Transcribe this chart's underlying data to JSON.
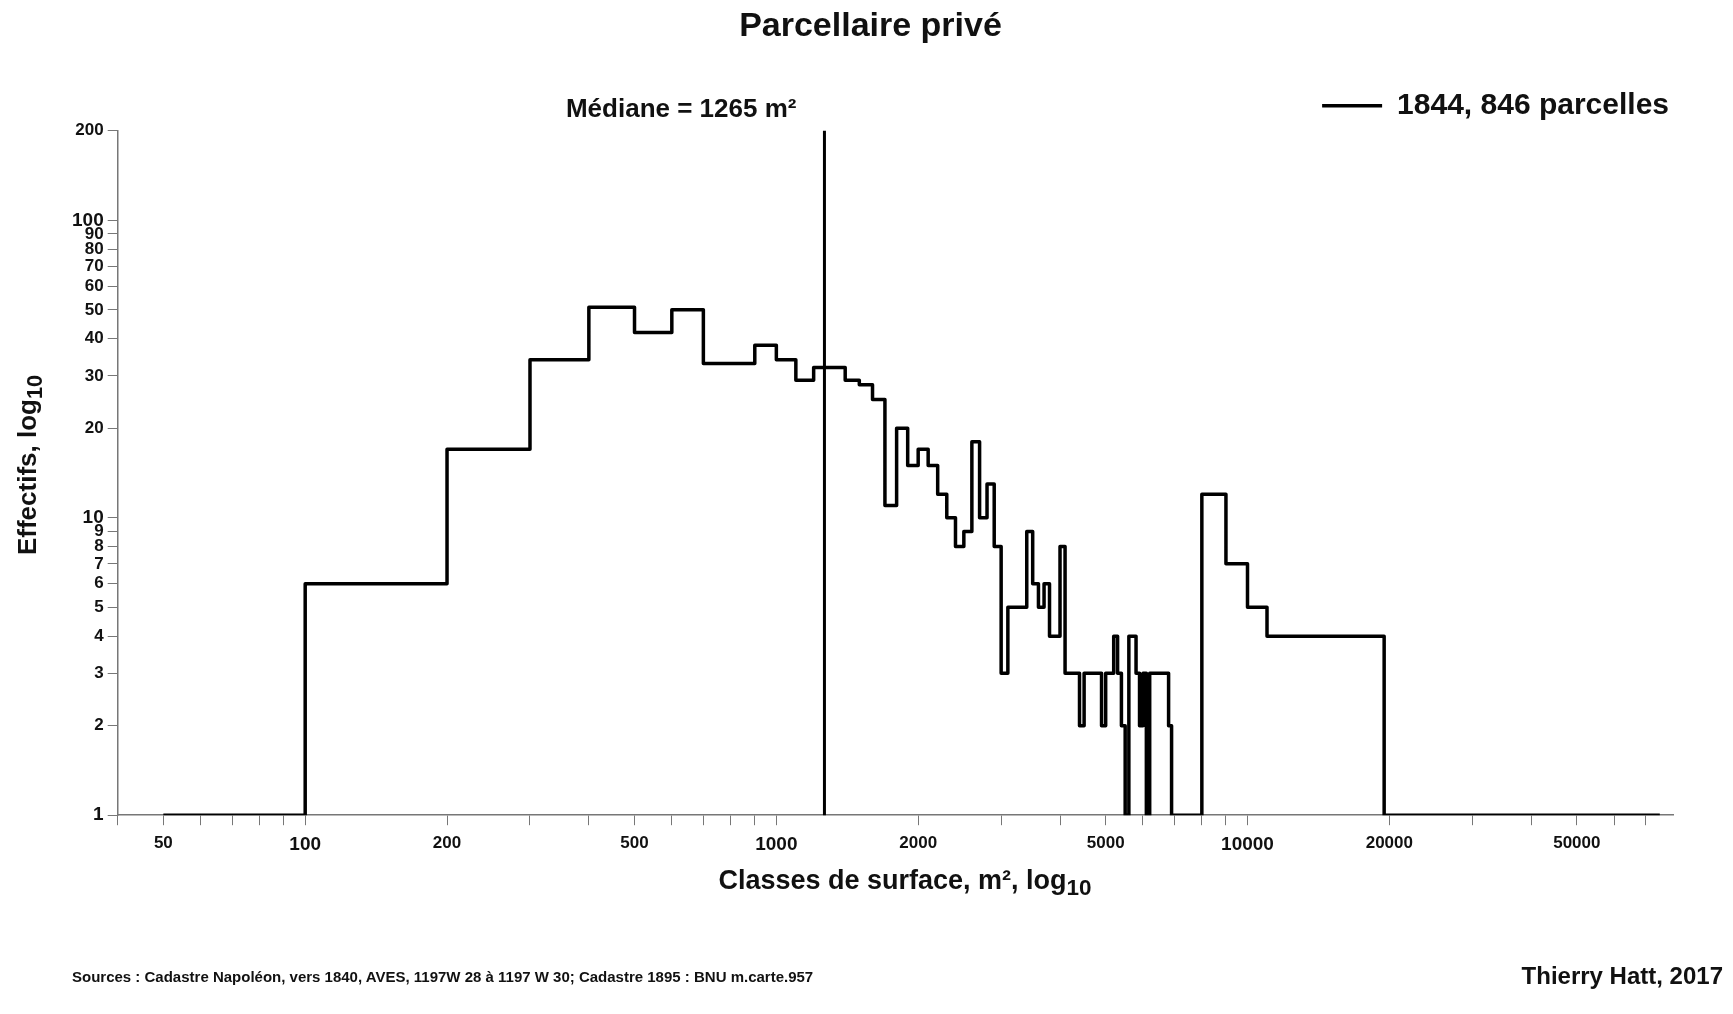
{
  "chart_data": {
    "type": "step",
    "title": "Parcellaire privé",
    "xlabel": "Classes de surface, m², log$_{10}$",
    "ylabel": "Effectifs, log$_{10}$",
    "log": "xy",
    "grid": false,
    "legend": "top right",
    "marker": "none",
    "line_style": "solid",
    "xlim": [
      40,
      80000
    ],
    "xticks": [
      {
        "value": 40,
        "label": null
      },
      50,
      {
        "value": 60,
        "label": null
      },
      {
        "value": 70,
        "label": null
      },
      {
        "value": 80,
        "label": null
      },
      {
        "value": 90,
        "label": null
      },
      100,
      200,
      {
        "value": 300,
        "label": null
      },
      {
        "value": 400,
        "label": null
      },
      500,
      {
        "value": 600,
        "label": null
      },
      {
        "value": 700,
        "label": null
      },
      {
        "value": 800,
        "label": null
      },
      {
        "value": 900,
        "label": null
      },
      1000,
      2000,
      {
        "value": 3000,
        "label": null
      },
      {
        "value": 4000,
        "label": null
      },
      5000,
      {
        "value": 6000,
        "label": null
      },
      {
        "value": 7000,
        "label": null
      },
      {
        "value": 8000,
        "label": null
      },
      {
        "value": 9000,
        "label": null
      },
      10000,
      20000,
      {
        "value": 30000,
        "label": null
      },
      {
        "value": 40000,
        "label": null
      },
      50000,
      {
        "value": 60000,
        "label": null
      },
      {
        "value": 70000,
        "label": null
      }
    ],
    "ylim": [
      1,
      200
    ],
    "yticks": [
      1,
      2,
      3,
      4,
      5,
      6,
      7,
      8,
      9,
      10,
      20,
      30,
      40,
      50,
      60,
      70,
      80,
      90,
      100,
      200
    ],
    "series": [
      {
        "name": "1844, 846 parcelles",
        "color": "#000000",
        "x": [
          50,
          100,
          200,
          300,
          400,
          500,
          600,
          700,
          900,
          1000,
          1100,
          1200,
          1400,
          1500,
          1600,
          1700,
          1800,
          1900,
          2000,
          2100,
          2200,
          2300,
          2400,
          2500,
          2600,
          2700,
          2800,
          2900,
          3000,
          3100,
          3400,
          3500,
          3600,
          3700,
          3800,
          4000,
          4100,
          4400,
          4500,
          4900,
          5000,
          5200,
          5300,
          5400,
          5500,
          5600,
          5800,
          5900,
          6000,
          6100,
          6200,
          6300,
          6800,
          6900,
          8000,
          9000,
          10000,
          11000,
          19500,
          75000
        ],
        "values": [
          1,
          6,
          17,
          34,
          51,
          42,
          50,
          33,
          38,
          34,
          29,
          32,
          29,
          28,
          25,
          11,
          20,
          15,
          17,
          15,
          12,
          10,
          8,
          9,
          18,
          10,
          13,
          8,
          3,
          5,
          9,
          6,
          5,
          6,
          4,
          8,
          3,
          2,
          3,
          2,
          3,
          4,
          3,
          2,
          1,
          4,
          3,
          2,
          3,
          1,
          3,
          3,
          2,
          1,
          12,
          7,
          5,
          4,
          1,
          1
        ]
      }
    ],
    "ref_lines": [
      {
        "axis": "x",
        "value": 1265,
        "label": "Médiane = 1265 m²",
        "color": "#000000"
      }
    ],
    "annotations": [
      "Sources : Cadastre Napoléon, vers 1840, AVES, 1197W 28 à 1197 W 30;  Cadastre 1895 : BNU m.carte.957",
      "Thierry Hatt, 2017"
    ]
  }
}
